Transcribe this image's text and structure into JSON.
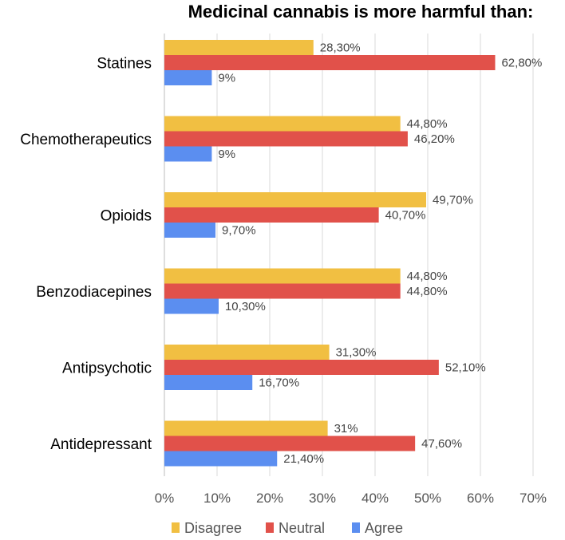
{
  "chart_data": {
    "type": "bar",
    "orientation": "horizontal",
    "title": "Medicinal cannabis is more harmful than:",
    "categories": [
      "Statines",
      "Chemotherapeutics",
      "Opioids",
      "Benzodiacepines",
      "Antipsychotic",
      "Antidepressant"
    ],
    "series": [
      {
        "name": "Disagree",
        "color": "#f1bf42",
        "values": [
          28.3,
          44.8,
          49.7,
          44.8,
          31.3,
          31
        ],
        "labels": [
          "28,30%",
          "44,80%",
          "49,70%",
          "44,80%",
          "31,30%",
          "31%"
        ]
      },
      {
        "name": "Neutral",
        "color": "#e1514a",
        "values": [
          62.8,
          46.2,
          40.7,
          44.8,
          52.1,
          47.6
        ],
        "labels": [
          "62,80%",
          "46,20%",
          "40,70%",
          "44,80%",
          "52,10%",
          "47,60%"
        ]
      },
      {
        "name": "Agree",
        "color": "#5b8ef0",
        "values": [
          9,
          9,
          9.7,
          10.3,
          16.7,
          21.4
        ],
        "labels": [
          "9%",
          "9%",
          "9,70%",
          "10,30%",
          "16,70%",
          "21,40%"
        ]
      }
    ],
    "xlim": [
      0,
      70
    ],
    "xticks": [
      "0%",
      "10%",
      "20%",
      "30%",
      "40%",
      "50%",
      "60%",
      "70%"
    ],
    "grid": true,
    "legend": "bottom"
  }
}
